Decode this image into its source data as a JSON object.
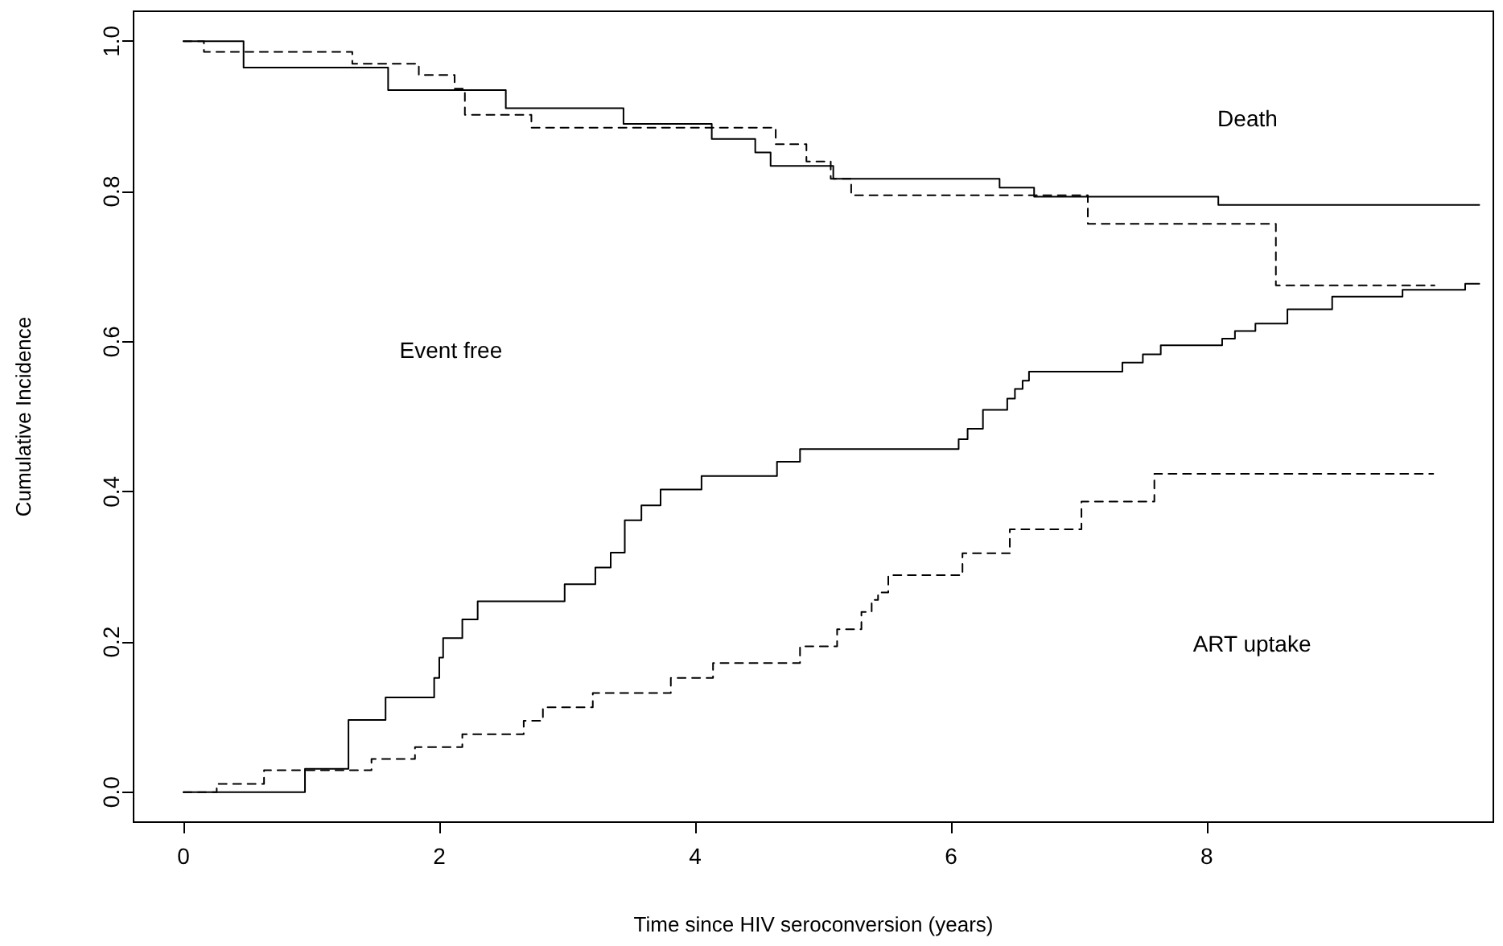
{
  "chart_data": {
    "type": "step",
    "xlabel": "Time since HIV seroconversion (years)",
    "ylabel": "Cumulative Incidence",
    "xlim": [
      -0.39,
      10.24
    ],
    "ylim": [
      -0.04,
      1.04
    ],
    "xticks": [
      0,
      2,
      4,
      6,
      8
    ],
    "yticks": [
      {
        "value": 0,
        "label": "0.0"
      },
      {
        "value": 0.2,
        "label": "0.2"
      },
      {
        "value": 0.4,
        "label": "0.4"
      },
      {
        "value": 0.6,
        "label": "0.6"
      },
      {
        "value": 0.8,
        "label": "0.8"
      },
      {
        "value": 1,
        "label": "1.0"
      }
    ],
    "grid": false,
    "marker": "none",
    "series": [
      {
        "color": "#000000",
        "line_style": "solid",
        "x": [
          0,
          0.47,
          1.6,
          2.52,
          3.44,
          4.13,
          4.47,
          4.59,
          5.08,
          6.38,
          6.65,
          8.09,
          10.13
        ],
        "values": [
          1,
          0.965,
          0.935,
          0.911,
          0.89,
          0.87,
          0.852,
          0.834,
          0.817,
          0.805,
          0.793,
          0.782,
          0.782
        ]
      },
      {
        "color": "#000000",
        "line_style": "dashed",
        "x": [
          0,
          0.16,
          1.32,
          1.84,
          2.12,
          2.2,
          2.72,
          4.63,
          4.87,
          5.06,
          5.22,
          7.07,
          8.54,
          9.78
        ],
        "values": [
          1,
          0.986,
          0.97,
          0.955,
          0.937,
          0.902,
          0.885,
          0.863,
          0.84,
          0.817,
          0.795,
          0.757,
          0.675,
          0.675
        ]
      },
      {
        "color": "#000000",
        "line_style": "solid",
        "x": [
          0,
          0.95,
          1.29,
          1.58,
          1.96,
          2.0,
          2.03,
          2.18,
          2.3,
          2.98,
          3.22,
          3.34,
          3.45,
          3.58,
          3.73,
          4.05,
          4.64,
          4.82,
          6.06,
          6.13,
          6.25,
          6.44,
          6.5,
          6.56,
          6.61,
          7.34,
          7.5,
          7.64,
          8.12,
          8.22,
          8.38,
          8.63,
          8.98,
          9.53,
          10.02,
          10.13
        ],
        "values": [
          0,
          0.031,
          0.096,
          0.126,
          0.152,
          0.179,
          0.205,
          0.23,
          0.254,
          0.277,
          0.299,
          0.319,
          0.362,
          0.382,
          0.403,
          0.421,
          0.44,
          0.457,
          0.47,
          0.484,
          0.509,
          0.524,
          0.537,
          0.548,
          0.56,
          0.572,
          0.583,
          0.595,
          0.604,
          0.614,
          0.624,
          0.643,
          0.66,
          0.669,
          0.677,
          0.677
        ]
      },
      {
        "color": "#000000",
        "line_style": "dashed",
        "x": [
          0,
          0.26,
          0.63,
          1.47,
          1.81,
          2.18,
          2.66,
          2.81,
          3.2,
          3.81,
          4.14,
          4.82,
          5.11,
          5.3,
          5.38,
          5.43,
          5.51,
          6.09,
          6.46,
          7.02,
          7.59,
          9.77
        ],
        "values": [
          0,
          0.011,
          0.029,
          0.044,
          0.06,
          0.077,
          0.095,
          0.113,
          0.132,
          0.152,
          0.172,
          0.194,
          0.217,
          0.24,
          0.256,
          0.266,
          0.289,
          0.318,
          0.35,
          0.387,
          0.424,
          0.424
        ]
      }
    ],
    "annotations": [
      "Death",
      "Event free",
      "ART uptake"
    ]
  }
}
